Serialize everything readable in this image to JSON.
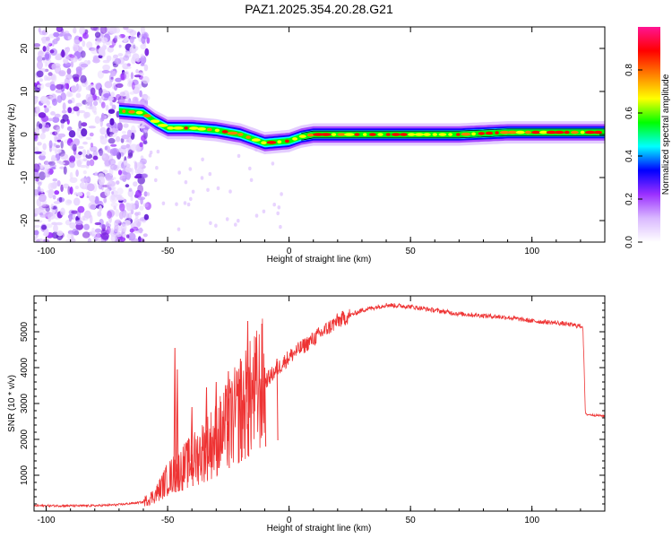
{
  "title": "PAZ1.2025.354.20.28.G21",
  "chart_data": [
    {
      "type": "heatmap",
      "xlabel": "Height of straight line (km)",
      "ylabel": "Frequency (Hz)",
      "xlim": [
        -105,
        130
      ],
      "ylim": [
        -25,
        25
      ],
      "xticks": [
        -100,
        -50,
        0,
        50,
        100
      ],
      "yticks": [
        -20,
        -10,
        0,
        10,
        20
      ],
      "colorbar": {
        "label": "Normalized spectral amplitude",
        "range": [
          0,
          1
        ],
        "ticks": [
          0.0,
          0.2,
          0.4,
          0.6,
          0.8
        ],
        "tick_labels": [
          "0.0",
          "0.2",
          "0.4",
          "0.6",
          "0.8"
        ],
        "colormap": [
          "#ffffff",
          "#d9b8ff",
          "#9b30ff",
          "#0000ff",
          "#00ffff",
          "#00ff00",
          "#ffff00",
          "#ff8000",
          "#ff0000",
          "#ff1493"
        ]
      },
      "ridge": {
        "x": [
          -70,
          -60,
          -55,
          -50,
          -40,
          -30,
          -20,
          -10,
          0,
          5,
          10,
          30,
          50,
          70,
          90,
          110,
          130
        ],
        "y": [
          5.5,
          5.0,
          3.0,
          1.5,
          1.5,
          1.0,
          0.0,
          -2.0,
          -1.5,
          -0.5,
          0.0,
          0.0,
          0.0,
          0.0,
          0.5,
          0.5,
          0.5
        ]
      },
      "noise_region_x": [
        -105,
        -62
      ]
    },
    {
      "type": "line",
      "xlabel": "Height of straight line (km)",
      "ylabel": "SNR (10 * v/v)",
      "xlim": [
        -105,
        130
      ],
      "ylim": [
        0,
        6000
      ],
      "xticks": [
        -100,
        -50,
        0,
        50,
        100
      ],
      "yticks": [
        1000,
        2000,
        3000,
        4000,
        5000
      ],
      "series_color": "#ee3333",
      "envelope": {
        "x": [
          -105,
          -80,
          -70,
          -60,
          -55,
          -50,
          -40,
          -30,
          -20,
          -10,
          0,
          10,
          20,
          30,
          40,
          50,
          60,
          70,
          80,
          90,
          100,
          110,
          121,
          122,
          130
        ],
        "y": [
          150,
          150,
          180,
          250,
          450,
          900,
          1400,
          2000,
          2800,
          3600,
          4300,
          4800,
          5300,
          5600,
          5750,
          5700,
          5600,
          5500,
          5450,
          5400,
          5300,
          5250,
          5150,
          2700,
          2650
        ]
      },
      "spikes": [
        {
          "x": -47,
          "y": 4550
        },
        {
          "x": -46,
          "y": 3950
        },
        {
          "x": -40,
          "y": 2900
        },
        {
          "x": -34,
          "y": 3450
        },
        {
          "x": -30,
          "y": 3600
        },
        {
          "x": -25,
          "y": 3900
        },
        {
          "x": -20,
          "y": 4250
        },
        {
          "x": -17,
          "y": 5300
        },
        {
          "x": -10,
          "y": 4000
        },
        {
          "x": -5,
          "y": 4250
        }
      ]
    }
  ]
}
